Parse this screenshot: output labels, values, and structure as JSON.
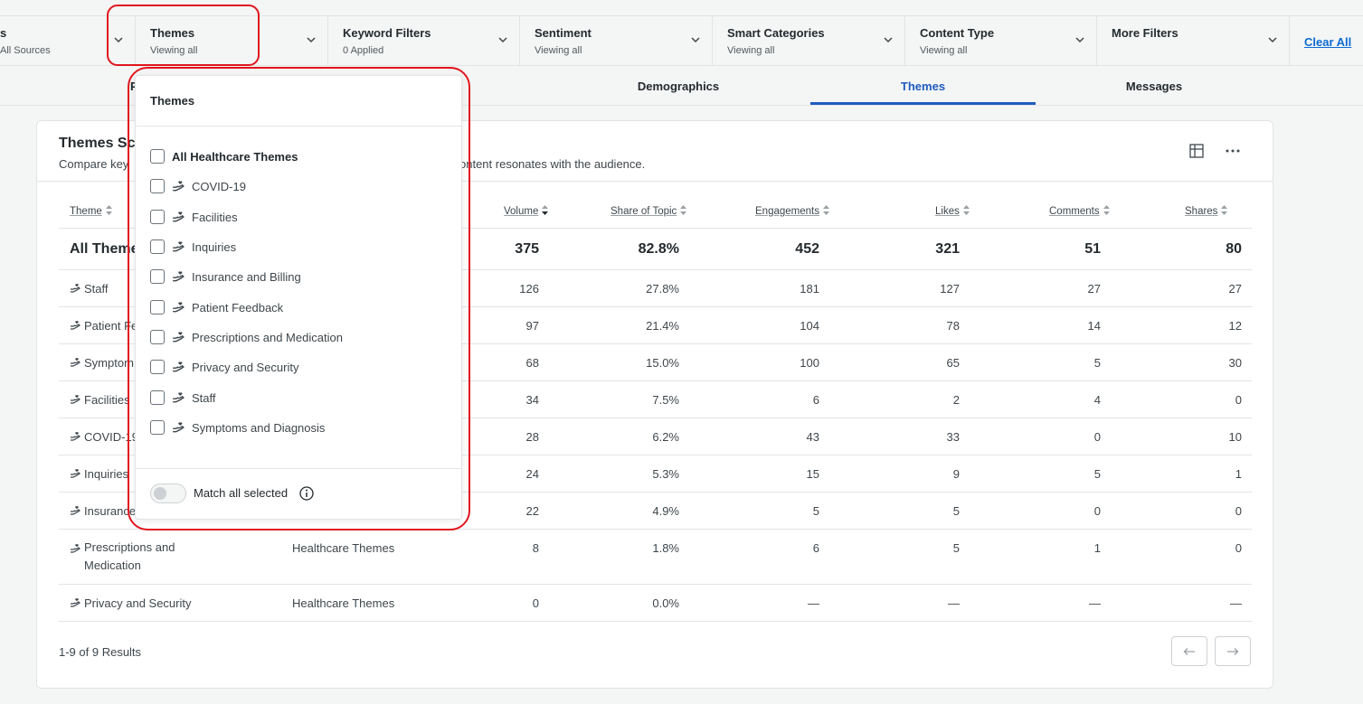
{
  "filters": [
    {
      "title": "s",
      "sub": "All Sources"
    },
    {
      "title": "Themes",
      "sub": "Viewing all"
    },
    {
      "title": "Keyword Filters",
      "sub": "0 Applied"
    },
    {
      "title": "Sentiment",
      "sub": "Viewing all"
    },
    {
      "title": "Smart Categories",
      "sub": "Viewing all"
    },
    {
      "title": "Content Type",
      "sub": "Viewing all"
    },
    {
      "title": "More Filters",
      "sub": ""
    }
  ],
  "clear_all": "Clear All",
  "tabs": [
    {
      "label": "Pe"
    },
    {
      "label": "Demographics"
    },
    {
      "label": "Themes"
    },
    {
      "label": "Messages"
    }
  ],
  "card": {
    "title": "Themes Sc",
    "subtitle_left": "Compare key",
    "subtitle_right": "ontent resonates with the audience."
  },
  "table": {
    "headers": {
      "theme": "Theme",
      "volume": "Volume",
      "share": "Share of Topic",
      "engagements": "Engagements",
      "likes": "Likes",
      "comments": "Comments",
      "shares": "Shares"
    },
    "total": {
      "name": "All Theme",
      "volume": "375",
      "share": "82.8%",
      "engagements": "452",
      "likes": "321",
      "comments": "51",
      "shares": "80"
    },
    "rows": [
      {
        "name": "Staff",
        "category": "",
        "volume": "126",
        "share": "27.8%",
        "engagements": "181",
        "likes": "127",
        "comments": "27",
        "shares": "27"
      },
      {
        "name": "Patient Fe",
        "category": "",
        "volume": "97",
        "share": "21.4%",
        "engagements": "104",
        "likes": "78",
        "comments": "14",
        "shares": "12"
      },
      {
        "name": "Symptom",
        "category": "",
        "volume": "68",
        "share": "15.0%",
        "engagements": "100",
        "likes": "65",
        "comments": "5",
        "shares": "30"
      },
      {
        "name": "Facilities",
        "category": "",
        "volume": "34",
        "share": "7.5%",
        "engagements": "6",
        "likes": "2",
        "comments": "4",
        "shares": "0"
      },
      {
        "name": "COVID-19",
        "category": "",
        "volume": "28",
        "share": "6.2%",
        "engagements": "43",
        "likes": "33",
        "comments": "0",
        "shares": "10"
      },
      {
        "name": "Inquiries",
        "category": "",
        "volume": "24",
        "share": "5.3%",
        "engagements": "15",
        "likes": "9",
        "comments": "5",
        "shares": "1"
      },
      {
        "name": "Insurance",
        "category": "",
        "volume": "22",
        "share": "4.9%",
        "engagements": "5",
        "likes": "5",
        "comments": "0",
        "shares": "0"
      },
      {
        "name": "Prescriptions and Medication",
        "category": "Healthcare Themes",
        "volume": "8",
        "share": "1.8%",
        "engagements": "6",
        "likes": "5",
        "comments": "1",
        "shares": "0"
      },
      {
        "name": "Privacy and Security",
        "category": "Healthcare Themes",
        "volume": "0",
        "share": "0.0%",
        "engagements": "—",
        "likes": "—",
        "comments": "—",
        "shares": "—"
      }
    ]
  },
  "results_text": "1-9 of 9 Results",
  "dropdown": {
    "title": "Themes",
    "all_label": "All Healthcare Themes",
    "options": [
      "COVID-19",
      "Facilities",
      "Inquiries",
      "Insurance and Billing",
      "Patient Feedback",
      "Prescriptions and Medication",
      "Privacy and Security",
      "Staff",
      "Symptoms and Diagnosis"
    ],
    "match_label": "Match all selected"
  },
  "icons": {
    "chevron": "chevron-down-icon",
    "theme": "hand-heart-icon",
    "table_view": "grid-icon",
    "more": "more-icon",
    "info": "info-icon",
    "prev": "arrow-left-icon",
    "next": "arrow-right-icon"
  },
  "colors": {
    "accent": "#1f5cbf",
    "link": "#0c6bd0",
    "highlight": "#e0161e"
  }
}
